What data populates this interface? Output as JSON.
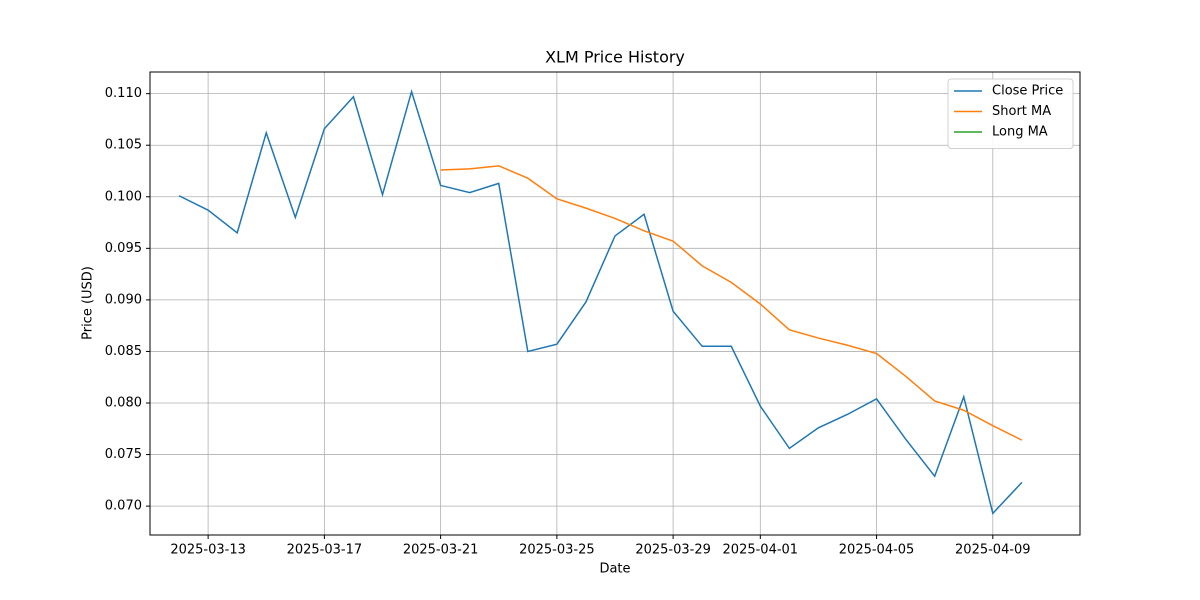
{
  "chart_data": {
    "type": "line",
    "title": "XLM Price History",
    "x_label": "Date",
    "y_label": "Price (USD)",
    "x": [
      "2025-03-12",
      "2025-03-13",
      "2025-03-14",
      "2025-03-15",
      "2025-03-16",
      "2025-03-17",
      "2025-03-18",
      "2025-03-19",
      "2025-03-20",
      "2025-03-21",
      "2025-03-22",
      "2025-03-23",
      "2025-03-24",
      "2025-03-25",
      "2025-03-26",
      "2025-03-27",
      "2025-03-28",
      "2025-03-29",
      "2025-03-30",
      "2025-03-31",
      "2025-04-01",
      "2025-04-02",
      "2025-04-03",
      "2025-04-04",
      "2025-04-05",
      "2025-04-06",
      "2025-04-07",
      "2025-04-08",
      "2025-04-09",
      "2025-04-10"
    ],
    "series": [
      {
        "name": "Close Price",
        "color": "#1f77b4",
        "values": [
          0.1001,
          0.0987,
          0.0965,
          0.1062,
          0.098,
          0.1066,
          0.1097,
          0.1002,
          0.1102,
          0.1011,
          0.1004,
          0.1013,
          0.085,
          0.0857,
          0.0898,
          0.0962,
          0.0983,
          0.0889,
          0.0855,
          0.0855,
          0.0797,
          0.0756,
          0.0776,
          0.0789,
          0.0804,
          0.0765,
          0.0729,
          0.0806,
          0.0693,
          0.0723
        ]
      },
      {
        "name": "Short MA",
        "color": "#ff7f0e",
        "values": [
          null,
          null,
          null,
          null,
          null,
          null,
          null,
          null,
          null,
          0.1026,
          0.1027,
          0.103,
          0.1018,
          0.0998,
          0.0989,
          0.0979,
          0.0967,
          0.0957,
          0.0933,
          0.0917,
          0.0896,
          0.0871,
          0.0863,
          0.0856,
          0.0848,
          0.0826,
          0.0802,
          0.0793,
          0.0778,
          0.0764
        ]
      },
      {
        "name": "Long MA",
        "color": "#2ca02c",
        "values": [
          null,
          null,
          null,
          null,
          null,
          null,
          null,
          null,
          null,
          null,
          null,
          null,
          null,
          null,
          null,
          null,
          null,
          null,
          null,
          null,
          null,
          null,
          null,
          null,
          null,
          null,
          null,
          null,
          null,
          null
        ]
      }
    ],
    "xlim": [
      "2025-03-11",
      "2025-04-12"
    ],
    "xticks": [
      "2025-03-13",
      "2025-03-17",
      "2025-03-21",
      "2025-03-25",
      "2025-03-29",
      "2025-04-01",
      "2025-04-05",
      "2025-04-09"
    ],
    "ylim": [
      0.0672,
      0.1121
    ],
    "yticks": [
      {
        "value": 0.07,
        "label": "0.070"
      },
      {
        "value": 0.075,
        "label": "0.075"
      },
      {
        "value": 0.08,
        "label": "0.080"
      },
      {
        "value": 0.085,
        "label": "0.085"
      },
      {
        "value": 0.09,
        "label": "0.090"
      },
      {
        "value": 0.095,
        "label": "0.095"
      },
      {
        "value": 0.1,
        "label": "0.100"
      },
      {
        "value": 0.105,
        "label": "0.105"
      },
      {
        "value": 0.11,
        "label": "0.110"
      }
    ],
    "grid": true,
    "legend": "upper right"
  }
}
